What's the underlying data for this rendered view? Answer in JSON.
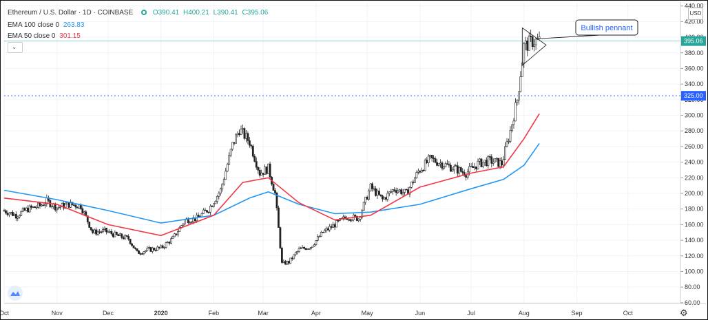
{
  "header": {
    "symbol_line": "Ethereum / U.S. Dollar · 1D · COINBASE",
    "open": "O390.41",
    "high": "H400.21",
    "low": "L390.41",
    "close": "C395.06",
    "status_color": "#26a69a"
  },
  "indicators": [
    {
      "label": "EMA 100 close 0",
      "value": "263.83",
      "color": "#2196f3"
    },
    {
      "label": "EMA 50 close 0",
      "value": "301.15",
      "color": "#f23645"
    }
  ],
  "scale_button": "USD",
  "settings_icon": "gear-icon",
  "chart_data": {
    "type": "candlestick",
    "symbol": "ETHUSD",
    "timeframe": "1D",
    "exchange": "COINBASE",
    "y_ticks": [
      60,
      80,
      100,
      120,
      140,
      160,
      180,
      200,
      220,
      240,
      260,
      280,
      300,
      320,
      340,
      360,
      380,
      400,
      420,
      440
    ],
    "ylim": [
      59,
      445
    ],
    "x_labels": [
      "Oct",
      "Nov",
      "Dec",
      "2020",
      "Feb",
      "Mar",
      "Apr",
      "May",
      "Jun",
      "Jul",
      "Aug",
      "Sep",
      "Oct"
    ],
    "x_label_dates": [
      "2019-10-01",
      "2019-11-01",
      "2019-12-01",
      "2020-01-01",
      "2020-02-01",
      "2020-03-01",
      "2020-04-01",
      "2020-05-01",
      "2020-06-01",
      "2020-07-01",
      "2020-08-01",
      "2020-09-01",
      "2020-10-01"
    ],
    "x_end_date": "2020-10-31",
    "current_price": "395.06",
    "current_price_value": 395.06,
    "horizontal_line": {
      "label": "325.00",
      "value": 325
    },
    "close_path": [
      [
        "2019-10-01",
        178
      ],
      [
        "2019-10-08",
        172
      ],
      [
        "2019-10-15",
        180
      ],
      [
        "2019-10-22",
        184
      ],
      [
        "2019-10-26",
        190
      ],
      [
        "2019-11-01",
        182
      ],
      [
        "2019-11-08",
        186
      ],
      [
        "2019-11-15",
        184
      ],
      [
        "2019-11-22",
        150
      ],
      [
        "2019-11-29",
        152
      ],
      [
        "2019-12-06",
        146
      ],
      [
        "2019-12-13",
        142
      ],
      [
        "2019-12-18",
        124
      ],
      [
        "2019-12-25",
        128
      ],
      [
        "2020-01-01",
        130
      ],
      [
        "2020-01-08",
        142
      ],
      [
        "2020-01-15",
        166
      ],
      [
        "2020-01-22",
        168
      ],
      [
        "2020-01-29",
        180
      ],
      [
        "2020-02-05",
        204
      ],
      [
        "2020-02-12",
        262
      ],
      [
        "2020-02-16",
        282
      ],
      [
        "2020-02-22",
        266
      ],
      [
        "2020-02-28",
        226
      ],
      [
        "2020-03-04",
        232
      ],
      [
        "2020-03-08",
        200
      ],
      [
        "2020-03-12",
        110
      ],
      [
        "2020-03-16",
        112
      ],
      [
        "2020-03-22",
        128
      ],
      [
        "2020-03-29",
        132
      ],
      [
        "2020-04-05",
        150
      ],
      [
        "2020-04-12",
        160
      ],
      [
        "2020-04-19",
        170
      ],
      [
        "2020-04-26",
        168
      ],
      [
        "2020-05-03",
        208
      ],
      [
        "2020-05-10",
        192
      ],
      [
        "2020-05-17",
        206
      ],
      [
        "2020-05-24",
        200
      ],
      [
        "2020-05-31",
        228
      ],
      [
        "2020-06-07",
        244
      ],
      [
        "2020-06-14",
        238
      ],
      [
        "2020-06-21",
        232
      ],
      [
        "2020-06-28",
        226
      ],
      [
        "2020-07-05",
        238
      ],
      [
        "2020-07-12",
        242
      ],
      [
        "2020-07-19",
        238
      ],
      [
        "2020-07-24",
        280
      ],
      [
        "2020-07-28",
        320
      ],
      [
        "2020-08-01",
        388
      ],
      [
        "2020-08-06",
        395
      ],
      [
        "2020-08-10",
        395.06
      ]
    ],
    "series": [
      {
        "name": "EMA 100",
        "color": "#2196f3",
        "points": [
          [
            "2019-10-01",
            204
          ],
          [
            "2019-11-01",
            192
          ],
          [
            "2019-12-01",
            178
          ],
          [
            "2020-01-01",
            162
          ],
          [
            "2020-02-01",
            172
          ],
          [
            "2020-02-22",
            194
          ],
          [
            "2020-03-04",
            202
          ],
          [
            "2020-03-22",
            186
          ],
          [
            "2020-04-12",
            174
          ],
          [
            "2020-05-03",
            176
          ],
          [
            "2020-06-01",
            186
          ],
          [
            "2020-07-01",
            206
          ],
          [
            "2020-07-20",
            218
          ],
          [
            "2020-08-01",
            236
          ],
          [
            "2020-08-10",
            264
          ]
        ]
      },
      {
        "name": "EMA 50",
        "color": "#f23645",
        "points": [
          [
            "2019-10-01",
            194
          ],
          [
            "2019-11-01",
            186
          ],
          [
            "2019-12-01",
            160
          ],
          [
            "2020-01-01",
            146
          ],
          [
            "2020-02-01",
            172
          ],
          [
            "2020-02-18",
            214
          ],
          [
            "2020-03-04",
            220
          ],
          [
            "2020-03-22",
            188
          ],
          [
            "2020-04-12",
            166
          ],
          [
            "2020-05-03",
            172
          ],
          [
            "2020-06-01",
            208
          ],
          [
            "2020-07-01",
            226
          ],
          [
            "2020-07-20",
            234
          ],
          [
            "2020-08-01",
            270
          ],
          [
            "2020-08-10",
            302
          ]
        ]
      }
    ],
    "annotation": {
      "text": "Bullish pennant"
    }
  }
}
